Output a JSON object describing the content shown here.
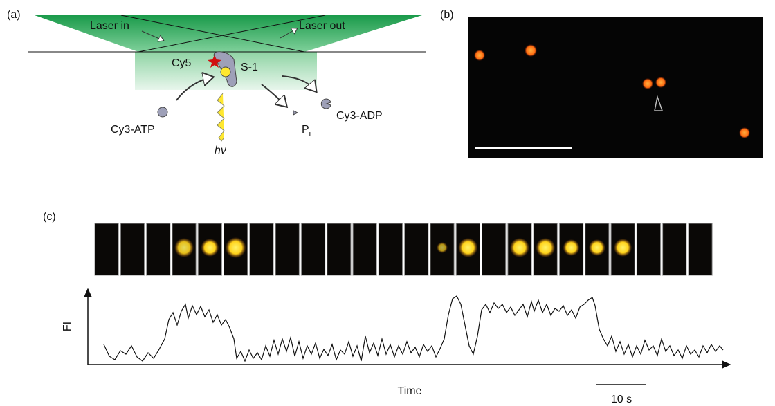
{
  "panel_a": {
    "label": "(a)",
    "laser_in": "Laser in",
    "laser_out": "Laser out",
    "cy5": "Cy5",
    "s1": "S-1",
    "cy3_atp": "Cy3-ATP",
    "hv": "hν",
    "p": "P",
    "p_sub": "i",
    "cy3_adp": "Cy3-ADP"
  },
  "panel_b": {
    "label": "(b)"
  },
  "panel_c": {
    "label": "(c)",
    "y_axis": "FI",
    "x_axis": "Time",
    "scale_bar": "10 s"
  }
}
